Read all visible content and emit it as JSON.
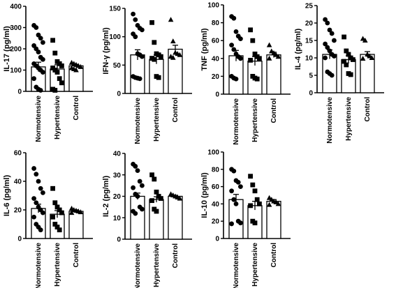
{
  "chart_data": [
    {
      "type": "bar",
      "ylabel": "IL-17 (pg/ml)",
      "ylim": [
        0,
        400
      ],
      "yticks": [
        0,
        100,
        200,
        300,
        400
      ],
      "categories": [
        "Normotensive",
        "Hypertensive",
        "Control"
      ],
      "means": [
        115,
        105,
        120
      ],
      "sem": [
        22,
        20,
        7
      ],
      "points": [
        [
          310,
          300,
          265,
          250,
          230,
          215,
          200,
          185,
          160,
          150,
          130,
          120,
          110,
          100,
          90,
          60,
          20,
          10,
          5
        ],
        [
          240,
          180,
          140,
          130,
          120,
          110,
          100,
          90,
          60,
          40,
          10,
          5
        ],
        [
          135,
          130,
          125,
          120,
          115,
          110,
          105,
          100
        ]
      ]
    },
    {
      "type": "bar",
      "ylabel": "IFN-γ (pg/ml)",
      "ylim": [
        0,
        150
      ],
      "yticks": [
        0,
        50,
        100,
        150
      ],
      "categories": [
        "Normotensive",
        "Hypertensive",
        "Control"
      ],
      "means": [
        68,
        60,
        78
      ],
      "sem": [
        9,
        8,
        7
      ],
      "points": [
        [
          140,
          130,
          120,
          115,
          112,
          105,
          100,
          70,
          68,
          65,
          30,
          28,
          27,
          26
        ],
        [
          125,
          90,
          70,
          68,
          65,
          62,
          60,
          30,
          28
        ],
        [
          130,
          92,
          72,
          70,
          68,
          65,
          63
        ]
      ]
    },
    {
      "type": "bar",
      "ylabel": "TNF (pg/ml)",
      "ylim": [
        0,
        100
      ],
      "yticks": [
        0,
        20,
        40,
        60,
        80,
        100
      ],
      "categories": [
        "Normotensive",
        "Hypertensive",
        "Control"
      ],
      "means": [
        43,
        37,
        44
      ],
      "sem": [
        6,
        5,
        3
      ],
      "points": [
        [
          87,
          85,
          70,
          65,
          62,
          55,
          50,
          45,
          42,
          40,
          20,
          18,
          17
        ],
        [
          72,
          60,
          45,
          42,
          40,
          38,
          20,
          18,
          17
        ],
        [
          55,
          48,
          46,
          44,
          42,
          40
        ]
      ]
    },
    {
      "type": "bar",
      "ylabel": "IL-4 (pg/ml)",
      "ylim": [
        0,
        25
      ],
      "yticks": [
        0,
        5,
        10,
        15,
        20,
        25
      ],
      "categories": [
        "Normotensive",
        "Hypertensive",
        "Control"
      ],
      "means": [
        11,
        9.5,
        11
      ],
      "sem": [
        1.3,
        1.1,
        0.8
      ],
      "points": [
        [
          21,
          20,
          18,
          17,
          15,
          14,
          13,
          12,
          11,
          10.5,
          10,
          6,
          5.5,
          5
        ],
        [
          16,
          12,
          11,
          10,
          9.5,
          9,
          8,
          5.5,
          5.2
        ],
        [
          15.5,
          15,
          11,
          10.5,
          10,
          9.8
        ]
      ]
    },
    {
      "type": "bar",
      "ylabel": "IL-6 (pg/ml)",
      "ylim": [
        0,
        60
      ],
      "yticks": [
        0,
        20,
        40,
        60
      ],
      "categories": [
        "Normotensive",
        "Hypertensive",
        "Control"
      ],
      "means": [
        21,
        17,
        19
      ],
      "sem": [
        3,
        2.5,
        1
      ],
      "points": [
        [
          49,
          45,
          40,
          35,
          32,
          28,
          25,
          22,
          20,
          18,
          15,
          10,
          8,
          6
        ],
        [
          35,
          25,
          22,
          20,
          18,
          15,
          10,
          8,
          6
        ],
        [
          21,
          20,
          19.5,
          19,
          18.5,
          18
        ]
      ]
    },
    {
      "type": "bar",
      "ylabel": "IL-2 (pg/ml)",
      "ylim": [
        0,
        40
      ],
      "yticks": [
        0,
        10,
        20,
        30,
        40
      ],
      "categories": [
        "Normotensive",
        "Hypertensive",
        "Control"
      ],
      "means": [
        20,
        18.5,
        20
      ],
      "sem": [
        1.5,
        1.3,
        0.5
      ],
      "points": [
        [
          35,
          34,
          32,
          27,
          25,
          24,
          21,
          20,
          15,
          14,
          13,
          12
        ],
        [
          30,
          28,
          22,
          20,
          19,
          18,
          14,
          13
        ],
        [
          21,
          20.5,
          20,
          19.5,
          19
        ]
      ]
    },
    {
      "type": "bar",
      "ylabel": "IL-10 (pg/ml)",
      "ylim": [
        0,
        100
      ],
      "yticks": [
        0,
        20,
        40,
        60,
        80,
        100
      ],
      "categories": [
        "Normotensive",
        "Hypertensive",
        "Control"
      ],
      "means": [
        45,
        38,
        43
      ],
      "sem": [
        6,
        5,
        2
      ],
      "points": [
        [
          80,
          78,
          67,
          65,
          60,
          55,
          45,
          40,
          20,
          18,
          17
        ],
        [
          72,
          62,
          55,
          45,
          40,
          38,
          20,
          18
        ],
        [
          47,
          45,
          43,
          42,
          40,
          39
        ]
      ]
    }
  ]
}
